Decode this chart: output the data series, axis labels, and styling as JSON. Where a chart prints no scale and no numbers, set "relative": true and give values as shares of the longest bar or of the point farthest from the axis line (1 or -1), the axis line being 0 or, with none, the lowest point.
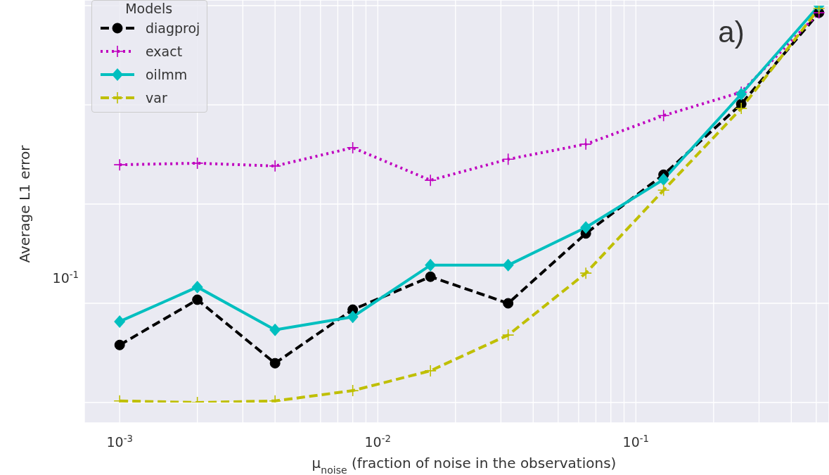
{
  "chart_data": {
    "type": "line",
    "relative": true,
    "xlabel": "μ$_{noise}$ (fraction of noise in the observations)",
    "ylabel": "Average L1 error",
    "legend_title": "Models",
    "annotations": [
      "a)",
      "10$^{-1}$"
    ],
    "x": [
      0.001,
      0.002,
      0.004,
      0.008,
      0.016,
      0.032,
      0.064,
      0.128,
      0.256,
      0.512
    ],
    "series": [
      {
        "name": "diagproj",
        "color": "#000000",
        "marker": "circle",
        "line_style": "dashed",
        "values": [
          0.145,
          0.259,
          0.099,
          0.234,
          0.317,
          0.25,
          0.426,
          0.574,
          0.752,
          0.982
        ]
      },
      {
        "name": "exact",
        "color": "#bf00bf",
        "marker": "cross",
        "line_style": "dotted",
        "values": [
          0.599,
          0.603,
          0.596,
          0.642,
          0.56,
          0.613,
          0.651,
          0.723,
          0.782,
          0.982
        ]
      },
      {
        "name": "oilmm",
        "color": "#00bfbf",
        "marker": "diamond",
        "line_style": "solid",
        "values": [
          0.204,
          0.291,
          0.183,
          0.216,
          0.346,
          0.346,
          0.441,
          0.562,
          0.777,
          1
        ]
      },
      {
        "name": "var",
        "color": "#bfbf00",
        "marker": "cross",
        "line_style": "dashed",
        "values": [
          0.004,
          0,
          0.004,
          0.03,
          0.08,
          0.17,
          0.326,
          0.535,
          0.741,
          0.993
        ]
      }
    ],
    "log": "x",
    "grid": true,
    "legend": "top left",
    "xlim": [
      0.00073,
      0.56
    ],
    "xticks": [
      {
        "value": 0.001,
        "label": "10$^{-3}$"
      },
      {
        "value": 0.002,
        "label": null
      },
      {
        "value": 0.003,
        "label": null
      },
      {
        "value": 0.004,
        "label": null
      },
      {
        "value": 0.005,
        "label": null
      },
      {
        "value": 0.006,
        "label": null
      },
      {
        "value": 0.007,
        "label": null
      },
      {
        "value": 0.008,
        "label": null
      },
      {
        "value": 0.009,
        "label": null
      },
      {
        "value": 0.01,
        "label": "10$^{-2}$"
      },
      {
        "value": 0.02,
        "label": null
      },
      {
        "value": 0.03,
        "label": null
      },
      {
        "value": 0.04,
        "label": null
      },
      {
        "value": 0.05,
        "label": null
      },
      {
        "value": 0.06,
        "label": null
      },
      {
        "value": 0.07,
        "label": null
      },
      {
        "value": 0.08,
        "label": null
      },
      {
        "value": 0.09,
        "label": null
      },
      {
        "value": 0.1,
        "label": "10$^{-1}$"
      },
      {
        "value": 0.2,
        "label": null
      },
      {
        "value": 0.3,
        "label": null
      },
      {
        "value": 0.4,
        "label": null
      },
      {
        "value": 0.5,
        "label": null
      }
    ]
  }
}
